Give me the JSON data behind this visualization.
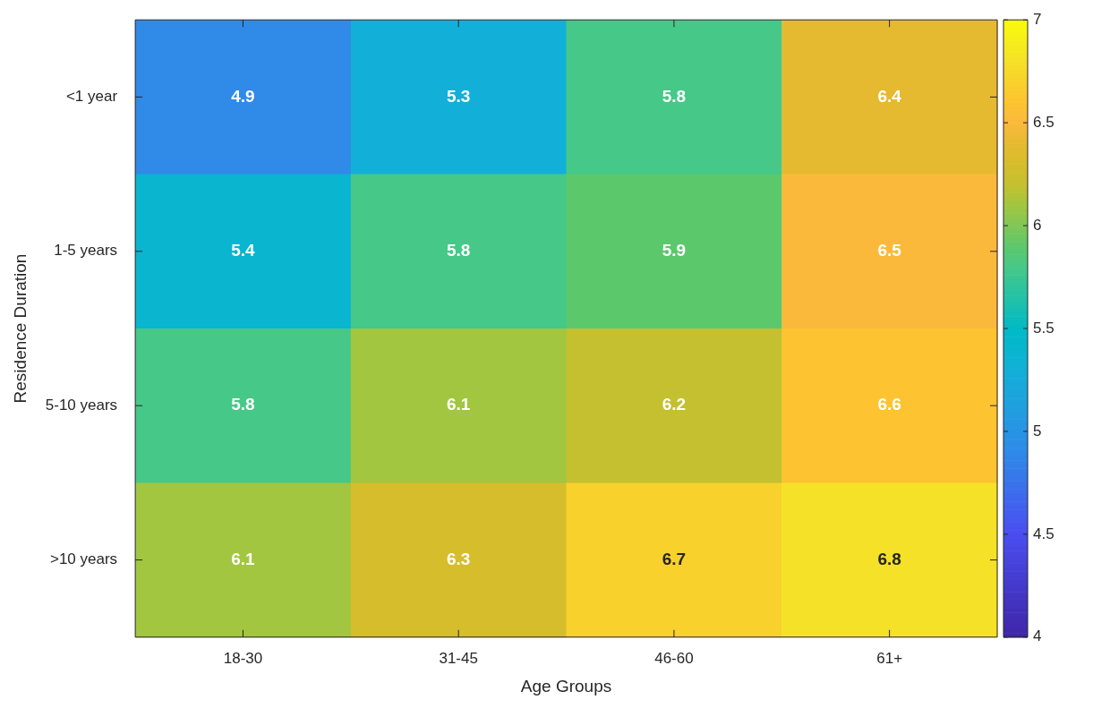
{
  "chart_data": {
    "type": "heatmap",
    "xlabel": "Age Groups",
    "ylabel": "Residence Duration",
    "categories": [
      "18-30",
      "31-45",
      "46-60",
      "61+"
    ],
    "y_categories": [
      "<1 year",
      "1-5 years",
      "5-10 years",
      ">10 years"
    ],
    "cells": [
      [
        4.9,
        5.3,
        5.8,
        6.4
      ],
      [
        5.4,
        5.8,
        5.9,
        6.5
      ],
      [
        5.8,
        6.1,
        6.2,
        6.6
      ],
      [
        6.1,
        6.3,
        6.7,
        6.8
      ]
    ],
    "data_labels": true,
    "clim": [
      4,
      7
    ],
    "cticks": [
      4,
      4.5,
      5,
      5.5,
      6,
      6.5,
      7
    ]
  }
}
